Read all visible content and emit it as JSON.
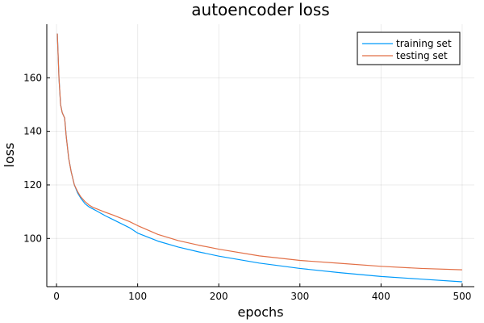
{
  "chart_data": {
    "type": "line",
    "title": "autoencoder loss",
    "xlabel": "epochs",
    "ylabel": "loss",
    "xlim": [
      -12,
      515
    ],
    "ylim": [
      82,
      180
    ],
    "xticks": [
      0,
      100,
      200,
      300,
      400,
      500
    ],
    "yticks": [
      100,
      120,
      140,
      160
    ],
    "grid": true,
    "legend_position": "top-right",
    "series": [
      {
        "name": "training set",
        "color": "#009AFA",
        "x": [
          1,
          3,
          5,
          7,
          10,
          12,
          15,
          18,
          22,
          26,
          30,
          35,
          40,
          45,
          50,
          60,
          70,
          80,
          90,
          100,
          125,
          150,
          175,
          200,
          250,
          300,
          350,
          400,
          450,
          500
        ],
        "values": [
          176.5,
          160,
          150,
          147,
          145,
          138,
          130,
          125,
          120,
          117,
          115,
          113,
          111.8,
          111,
          110.2,
          108.5,
          107,
          105.5,
          104,
          102,
          99,
          96.8,
          95,
          93.4,
          90.8,
          88.8,
          87.2,
          85.8,
          84.8,
          83.8
        ]
      },
      {
        "name": "testing set",
        "color": "#E26F46",
        "x": [
          1,
          3,
          5,
          7,
          10,
          12,
          15,
          18,
          22,
          26,
          30,
          35,
          40,
          45,
          50,
          60,
          70,
          80,
          90,
          100,
          125,
          150,
          175,
          200,
          250,
          300,
          350,
          400,
          450,
          500
        ],
        "values": [
          176.5,
          160,
          150,
          147,
          145,
          138,
          130,
          125,
          120,
          117.5,
          115.5,
          113.8,
          112.5,
          111.6,
          111,
          109.8,
          108.7,
          107.5,
          106.3,
          104.8,
          101.5,
          99.2,
          97.5,
          96,
          93.5,
          91.8,
          90.7,
          89.6,
          88.8,
          88.3
        ]
      }
    ]
  }
}
